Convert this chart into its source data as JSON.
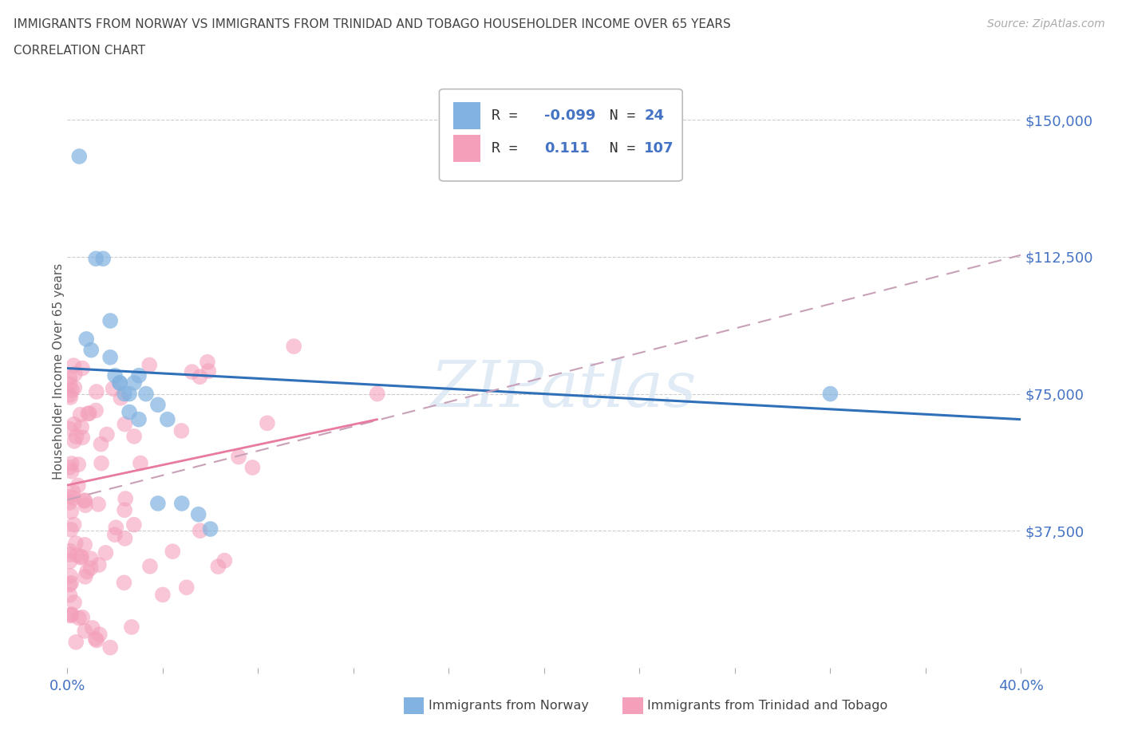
{
  "title_line1": "IMMIGRANTS FROM NORWAY VS IMMIGRANTS FROM TRINIDAD AND TOBAGO HOUSEHOLDER INCOME OVER 65 YEARS",
  "title_line2": "CORRELATION CHART",
  "source_text": "Source: ZipAtlas.com",
  "ylabel": "Householder Income Over 65 years",
  "xlim": [
    0.0,
    0.4
  ],
  "ylim": [
    0,
    162500
  ],
  "yticks": [
    0,
    37500,
    75000,
    112500,
    150000
  ],
  "ytick_labels": [
    "",
    "$37,500",
    "$75,000",
    "$112,500",
    "$150,000"
  ],
  "norway_color": "#82b3e0",
  "tt_color": "#f4a0bb",
  "norway_line_color": "#3070b8",
  "tt_line_color": "#e87aa0",
  "tt_dashed_color": "#e0a0b8",
  "norway_R": -0.099,
  "norway_N": 24,
  "tt_R": 0.111,
  "tt_N": 107,
  "background_color": "#ffffff",
  "grid_color": "#cccccc",
  "watermark": "ZIPatlas"
}
